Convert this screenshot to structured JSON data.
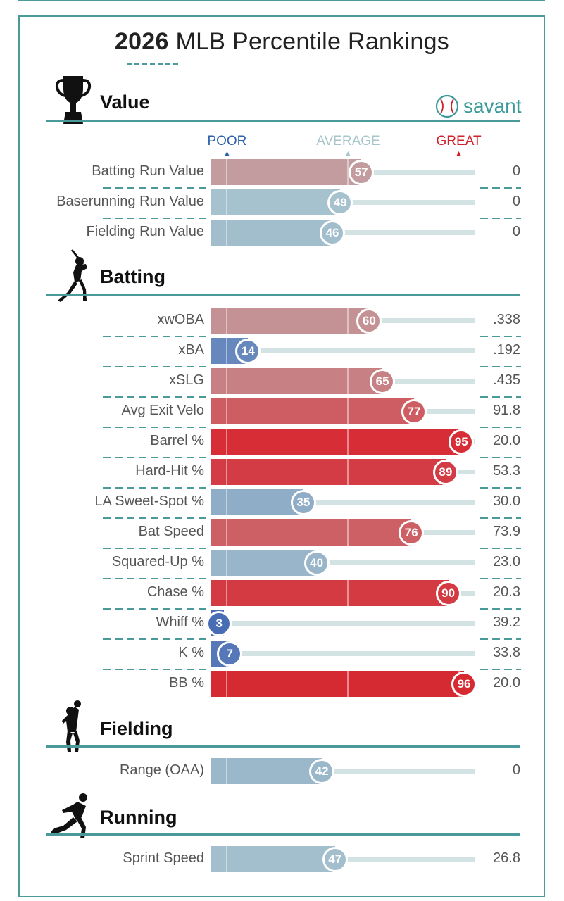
{
  "title": {
    "year": "2026",
    "rest": "MLB Percentile Rankings"
  },
  "brand": {
    "name": "savant",
    "icon": "baseball-icon",
    "color": "#3d9a9a"
  },
  "scale": {
    "poor": "POOR",
    "average": "AVERAGE",
    "great": "GREAT",
    "poor_color": "#2d5faa",
    "average_color": "#a6c6cc",
    "great_color": "#d0202a"
  },
  "colors": {
    "poor": "#3a5fb0",
    "average": "#bcbcbc",
    "great": "#d8202a",
    "track": "#d3e3e3"
  },
  "chart_data": {
    "type": "bar",
    "title": "2026 MLB Percentile Rankings",
    "xlim": [
      0,
      100
    ],
    "sections": [
      {
        "name": "Value",
        "icon": "trophy-icon",
        "metrics": [
          {
            "label": "Batting Run Value",
            "percentile": 57,
            "value": "0"
          },
          {
            "label": "Baserunning Run Value",
            "percentile": 49,
            "value": "0"
          },
          {
            "label": "Fielding Run Value",
            "percentile": 46,
            "value": "0"
          }
        ]
      },
      {
        "name": "Batting",
        "icon": "batter-icon",
        "metrics": [
          {
            "label": "xwOBA",
            "percentile": 60,
            "value": ".338"
          },
          {
            "label": "xBA",
            "percentile": 14,
            "value": ".192"
          },
          {
            "label": "xSLG",
            "percentile": 65,
            "value": ".435"
          },
          {
            "label": "Avg Exit Velo",
            "percentile": 77,
            "value": "91.8"
          },
          {
            "label": "Barrel %",
            "percentile": 95,
            "value": "20.0"
          },
          {
            "label": "Hard-Hit %",
            "percentile": 89,
            "value": "53.3"
          },
          {
            "label": "LA Sweet-Spot %",
            "percentile": 35,
            "value": "30.0"
          },
          {
            "label": "Bat Speed",
            "percentile": 76,
            "value": "73.9"
          },
          {
            "label": "Squared-Up %",
            "percentile": 40,
            "value": "23.0"
          },
          {
            "label": "Chase %",
            "percentile": 90,
            "value": "20.3"
          },
          {
            "label": "Whiff %",
            "percentile": 3,
            "value": "39.2"
          },
          {
            "label": "K %",
            "percentile": 7,
            "value": "33.8"
          },
          {
            "label": "BB %",
            "percentile": 96,
            "value": "20.0"
          }
        ]
      },
      {
        "name": "Fielding",
        "icon": "fielder-icon",
        "metrics": [
          {
            "label": "Range (OAA)",
            "percentile": 42,
            "value": "0"
          }
        ]
      },
      {
        "name": "Running",
        "icon": "runner-icon",
        "metrics": [
          {
            "label": "Sprint Speed",
            "percentile": 47,
            "value": "26.8"
          }
        ]
      }
    ]
  }
}
